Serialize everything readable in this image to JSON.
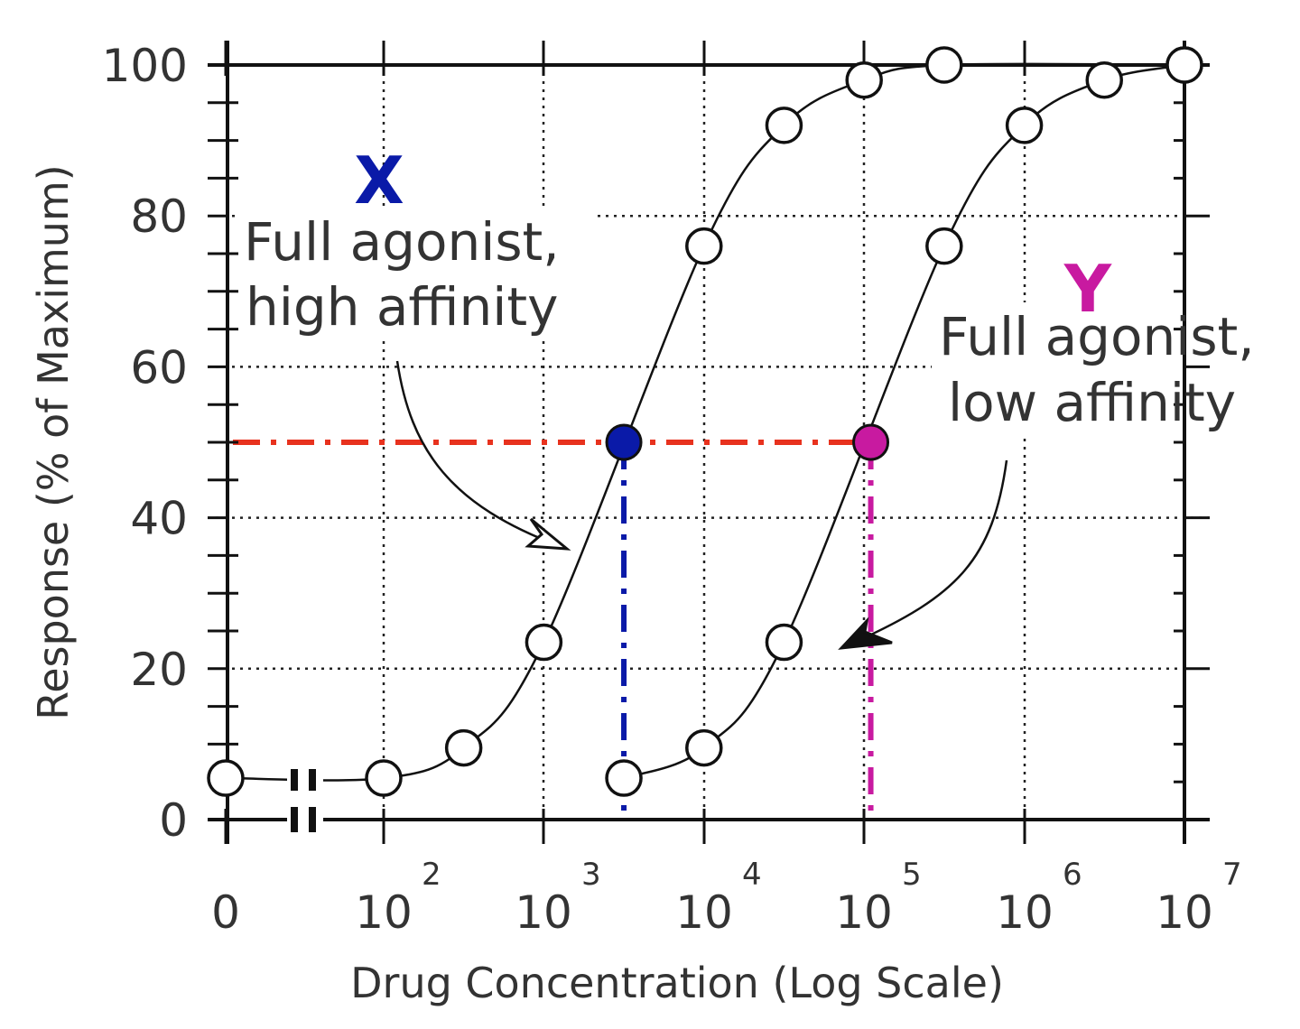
{
  "chart_data": {
    "type": "line",
    "title": "",
    "xlabel": "Drug Concentration (Log Scale)",
    "ylabel": "Response (% of Maximum)",
    "x_scale": "log",
    "ylim": [
      0,
      100
    ],
    "x_ticks": [
      {
        "base": "0",
        "exp": ""
      },
      {
        "base": "10",
        "exp": "2"
      },
      {
        "base": "10",
        "exp": "3"
      },
      {
        "base": "10",
        "exp": "4"
      },
      {
        "base": "10",
        "exp": "5"
      },
      {
        "base": "10",
        "exp": "6"
      },
      {
        "base": "10",
        "exp": "7"
      }
    ],
    "y_ticks": [
      "0",
      "20",
      "40",
      "60",
      "80",
      "100"
    ],
    "grid": true,
    "axis_break": true,
    "series": [
      {
        "letter": "X",
        "label_lines": [
          "Full agonist,",
          "high affinity"
        ],
        "color": "#0a1aa8",
        "points": [
          {
            "x": 0,
            "y": 5.5
          },
          {
            "x": 100,
            "y": 5.5
          },
          {
            "x": 316,
            "y": 9.5
          },
          {
            "x": 1000,
            "y": 23.5
          },
          {
            "x": 10000,
            "y": 76
          },
          {
            "x": 31600,
            "y": 92
          },
          {
            "x": 100000,
            "y": 98
          },
          {
            "x": 316000,
            "y": 100
          },
          {
            "x": 10000000,
            "y": 100
          }
        ],
        "ec50": {
          "x": 3160,
          "y": 50
        }
      },
      {
        "letter": "Y",
        "label_lines": [
          "Full agonist,",
          "low affinity"
        ],
        "color": "#c81aa0",
        "points": [
          {
            "x": 3160,
            "y": 5.5
          },
          {
            "x": 10000,
            "y": 9.5
          },
          {
            "x": 31600,
            "y": 23.5
          },
          {
            "x": 316000,
            "y": 76
          },
          {
            "x": 1000000,
            "y": 92
          },
          {
            "x": 3160000,
            "y": 98
          },
          {
            "x": 10000000,
            "y": 100
          }
        ],
        "ec50": {
          "x": 110000,
          "y": 50
        }
      }
    ],
    "reference_line_color": "#e8321e"
  }
}
